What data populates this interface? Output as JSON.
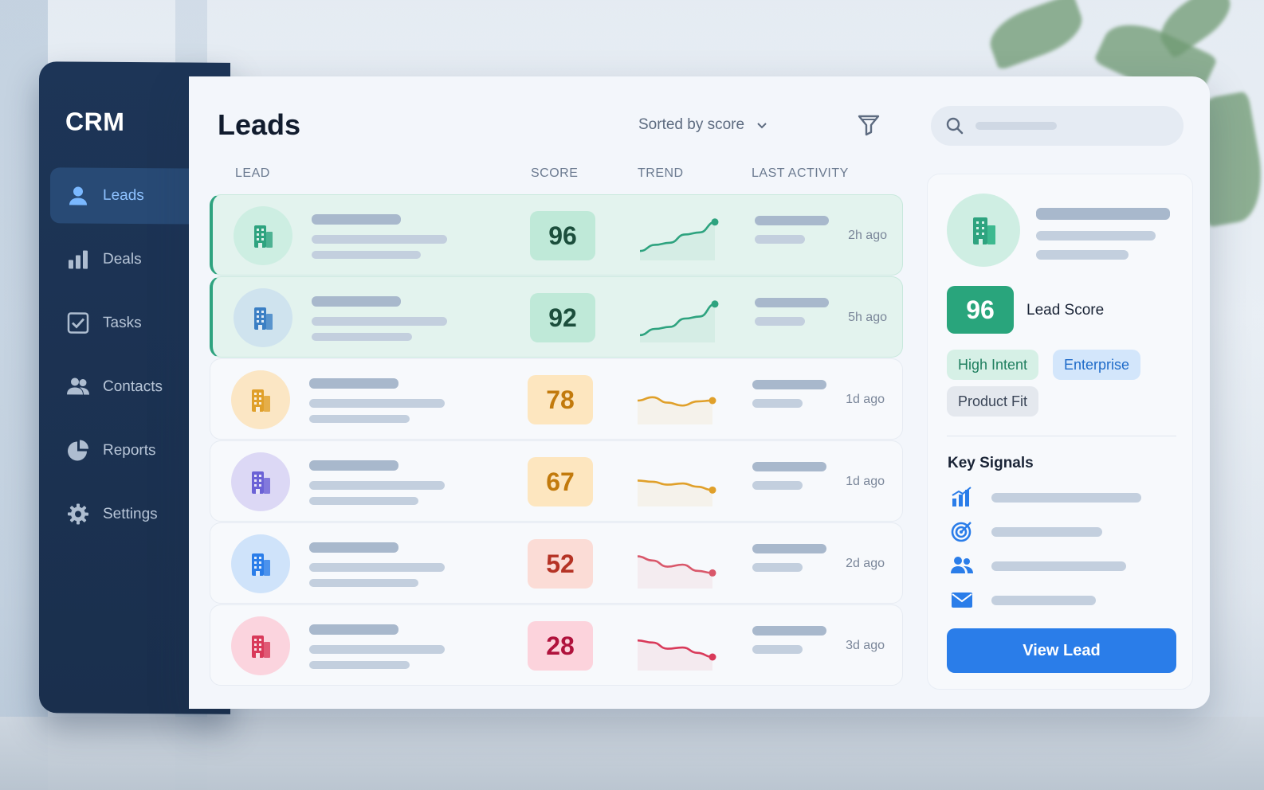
{
  "app": {
    "brand": "CRM"
  },
  "sidebar": {
    "items": [
      {
        "label": "Leads",
        "icon": "user-icon",
        "active": true
      },
      {
        "label": "Deals",
        "icon": "bar-chart-icon",
        "active": false
      },
      {
        "label": "Tasks",
        "icon": "checkbox-icon",
        "active": false
      },
      {
        "label": "Contacts",
        "icon": "contacts-icon",
        "active": false
      },
      {
        "label": "Reports",
        "icon": "pie-chart-icon",
        "active": false
      },
      {
        "label": "Settings",
        "icon": "gear-icon",
        "active": false
      }
    ]
  },
  "header": {
    "title": "Leads",
    "sort_label": "Sorted by score",
    "search_placeholder": ""
  },
  "table": {
    "columns": [
      "LEAD",
      "SCORE",
      "TREND",
      "LAST ACTIVITY"
    ],
    "rows": [
      {
        "score": "96",
        "last_activity": "2h ago",
        "trend": [
          0.15,
          0.3,
          0.35,
          0.55,
          0.6,
          0.85
        ],
        "color": "#2ea37f",
        "tint": "#cdeee2",
        "score_bg": "#bfe9d8",
        "score_fg": "#1c4e3c",
        "highlight": true
      },
      {
        "score": "92",
        "last_activity": "5h ago",
        "trend": [
          0.1,
          0.25,
          0.3,
          0.5,
          0.55,
          0.85
        ],
        "color": "#2ea37f",
        "tint": "#cfe3ee",
        "score_bg": "#bfe9d8",
        "score_fg": "#1c4e3c",
        "highlight": true
      },
      {
        "score": "78",
        "last_activity": "1d ago",
        "trend": [
          0.5,
          0.58,
          0.45,
          0.38,
          0.48,
          0.5
        ],
        "color": "#e0a02a",
        "tint": "#fbe6c4",
        "score_bg": "#fde6bf",
        "score_fg": "#c27a0c",
        "highlight": false
      },
      {
        "score": "67",
        "last_activity": "1d ago",
        "trend": [
          0.55,
          0.52,
          0.45,
          0.48,
          0.4,
          0.32
        ],
        "color": "#e0a02a",
        "tint": "#dcd8f5",
        "score_bg": "#fde6bf",
        "score_fg": "#c27a0c",
        "highlight": false
      },
      {
        "score": "52",
        "last_activity": "2d ago",
        "trend": [
          0.7,
          0.6,
          0.45,
          0.5,
          0.35,
          0.3
        ],
        "color": "#d9576a",
        "tint": "#cfe3fa",
        "score_bg": "#fbdcd6",
        "score_fg": "#b53325",
        "highlight": false
      },
      {
        "score": "28",
        "last_activity": "3d ago",
        "trend": [
          0.65,
          0.6,
          0.45,
          0.48,
          0.35,
          0.25
        ],
        "color": "#d93a5a",
        "tint": "#fbd4de",
        "score_bg": "#fcd3dc",
        "score_fg": "#b0123c",
        "highlight": false
      }
    ]
  },
  "detail": {
    "score": "96",
    "score_label": "Lead Score",
    "tags": [
      "High Intent",
      "Enterprise",
      "Product Fit"
    ],
    "signals_title": "Key Signals",
    "signals": [
      "bar-chart-icon",
      "target-icon",
      "people-icon",
      "mail-icon"
    ],
    "button_label": "View Lead"
  },
  "colors": {
    "accent": "#2a7de9",
    "success": "#29a57c",
    "sidebar": "#1d3557"
  }
}
